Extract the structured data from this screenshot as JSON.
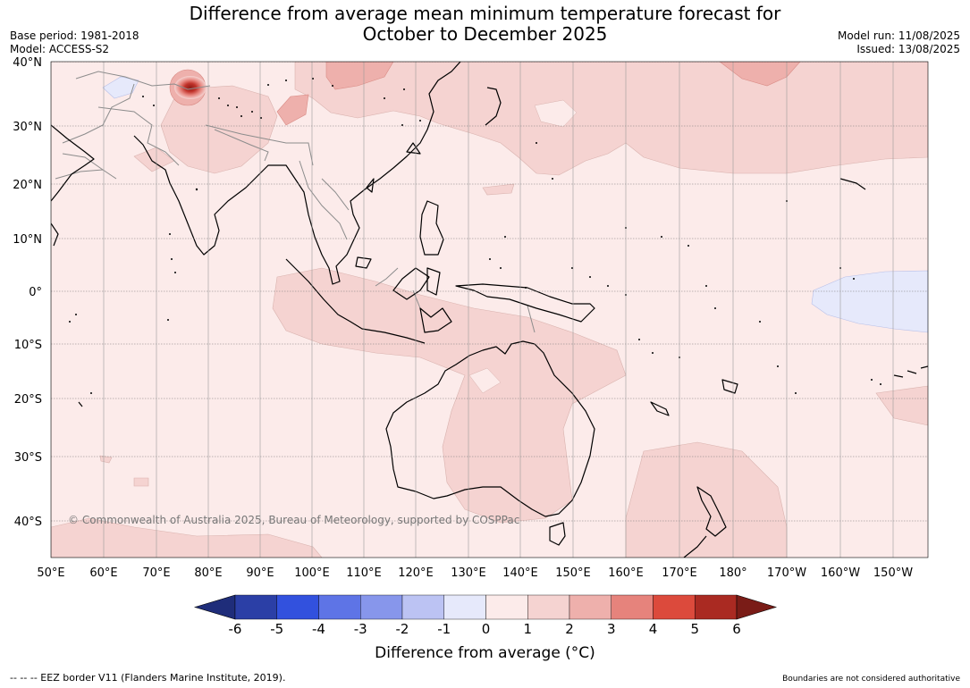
{
  "title_lines": [
    "Difference from average mean minimum temperature forecast for",
    "October to December 2025"
  ],
  "meta_left": [
    "Base period: 1981-2018",
    "Model: ACCESS-S2"
  ],
  "meta_right": [
    "Model run: 11/08/2025",
    "Issued: 13/08/2025"
  ],
  "copyright": "© Commonwealth of Australia 2025, Bureau of Meteorology, supported by COSPPac",
  "lat_labels": [
    "40°N",
    "30°N",
    "20°N",
    "10°N",
    "0°",
    "10°S",
    "20°S",
    "30°S",
    "40°S"
  ],
  "lon_labels": [
    "50°E",
    "60°E",
    "70°E",
    "80°E",
    "90°E",
    "100°E",
    "110°E",
    "120°E",
    "130°E",
    "140°E",
    "150°E",
    "160°E",
    "170°E",
    "180°",
    "170°W",
    "160°W",
    "150°W"
  ],
  "colorbar": {
    "title": "Difference from average (°C)",
    "ticks": [
      "-6",
      "-5",
      "-4",
      "-3",
      "-2",
      "-1",
      "0",
      "1",
      "2",
      "3",
      "4",
      "5",
      "6"
    ],
    "colors": [
      "#2b3fa6",
      "#3251de",
      "#5e74e6",
      "#8796eb",
      "#bcc3f3",
      "#e6e9fb",
      "#fcebea",
      "#f5d3d1",
      "#eeb0ac",
      "#e6837c",
      "#dc4a3c",
      "#aa2a22"
    ],
    "low_extend_color": "#1f2d7a",
    "high_extend_color": "#7a1c17"
  },
  "footer_left": "--  --  -- EEZ border V11 (Flanders Marine Institute, 2019).",
  "footer_right": "Boundaries are not considered authoritative"
}
